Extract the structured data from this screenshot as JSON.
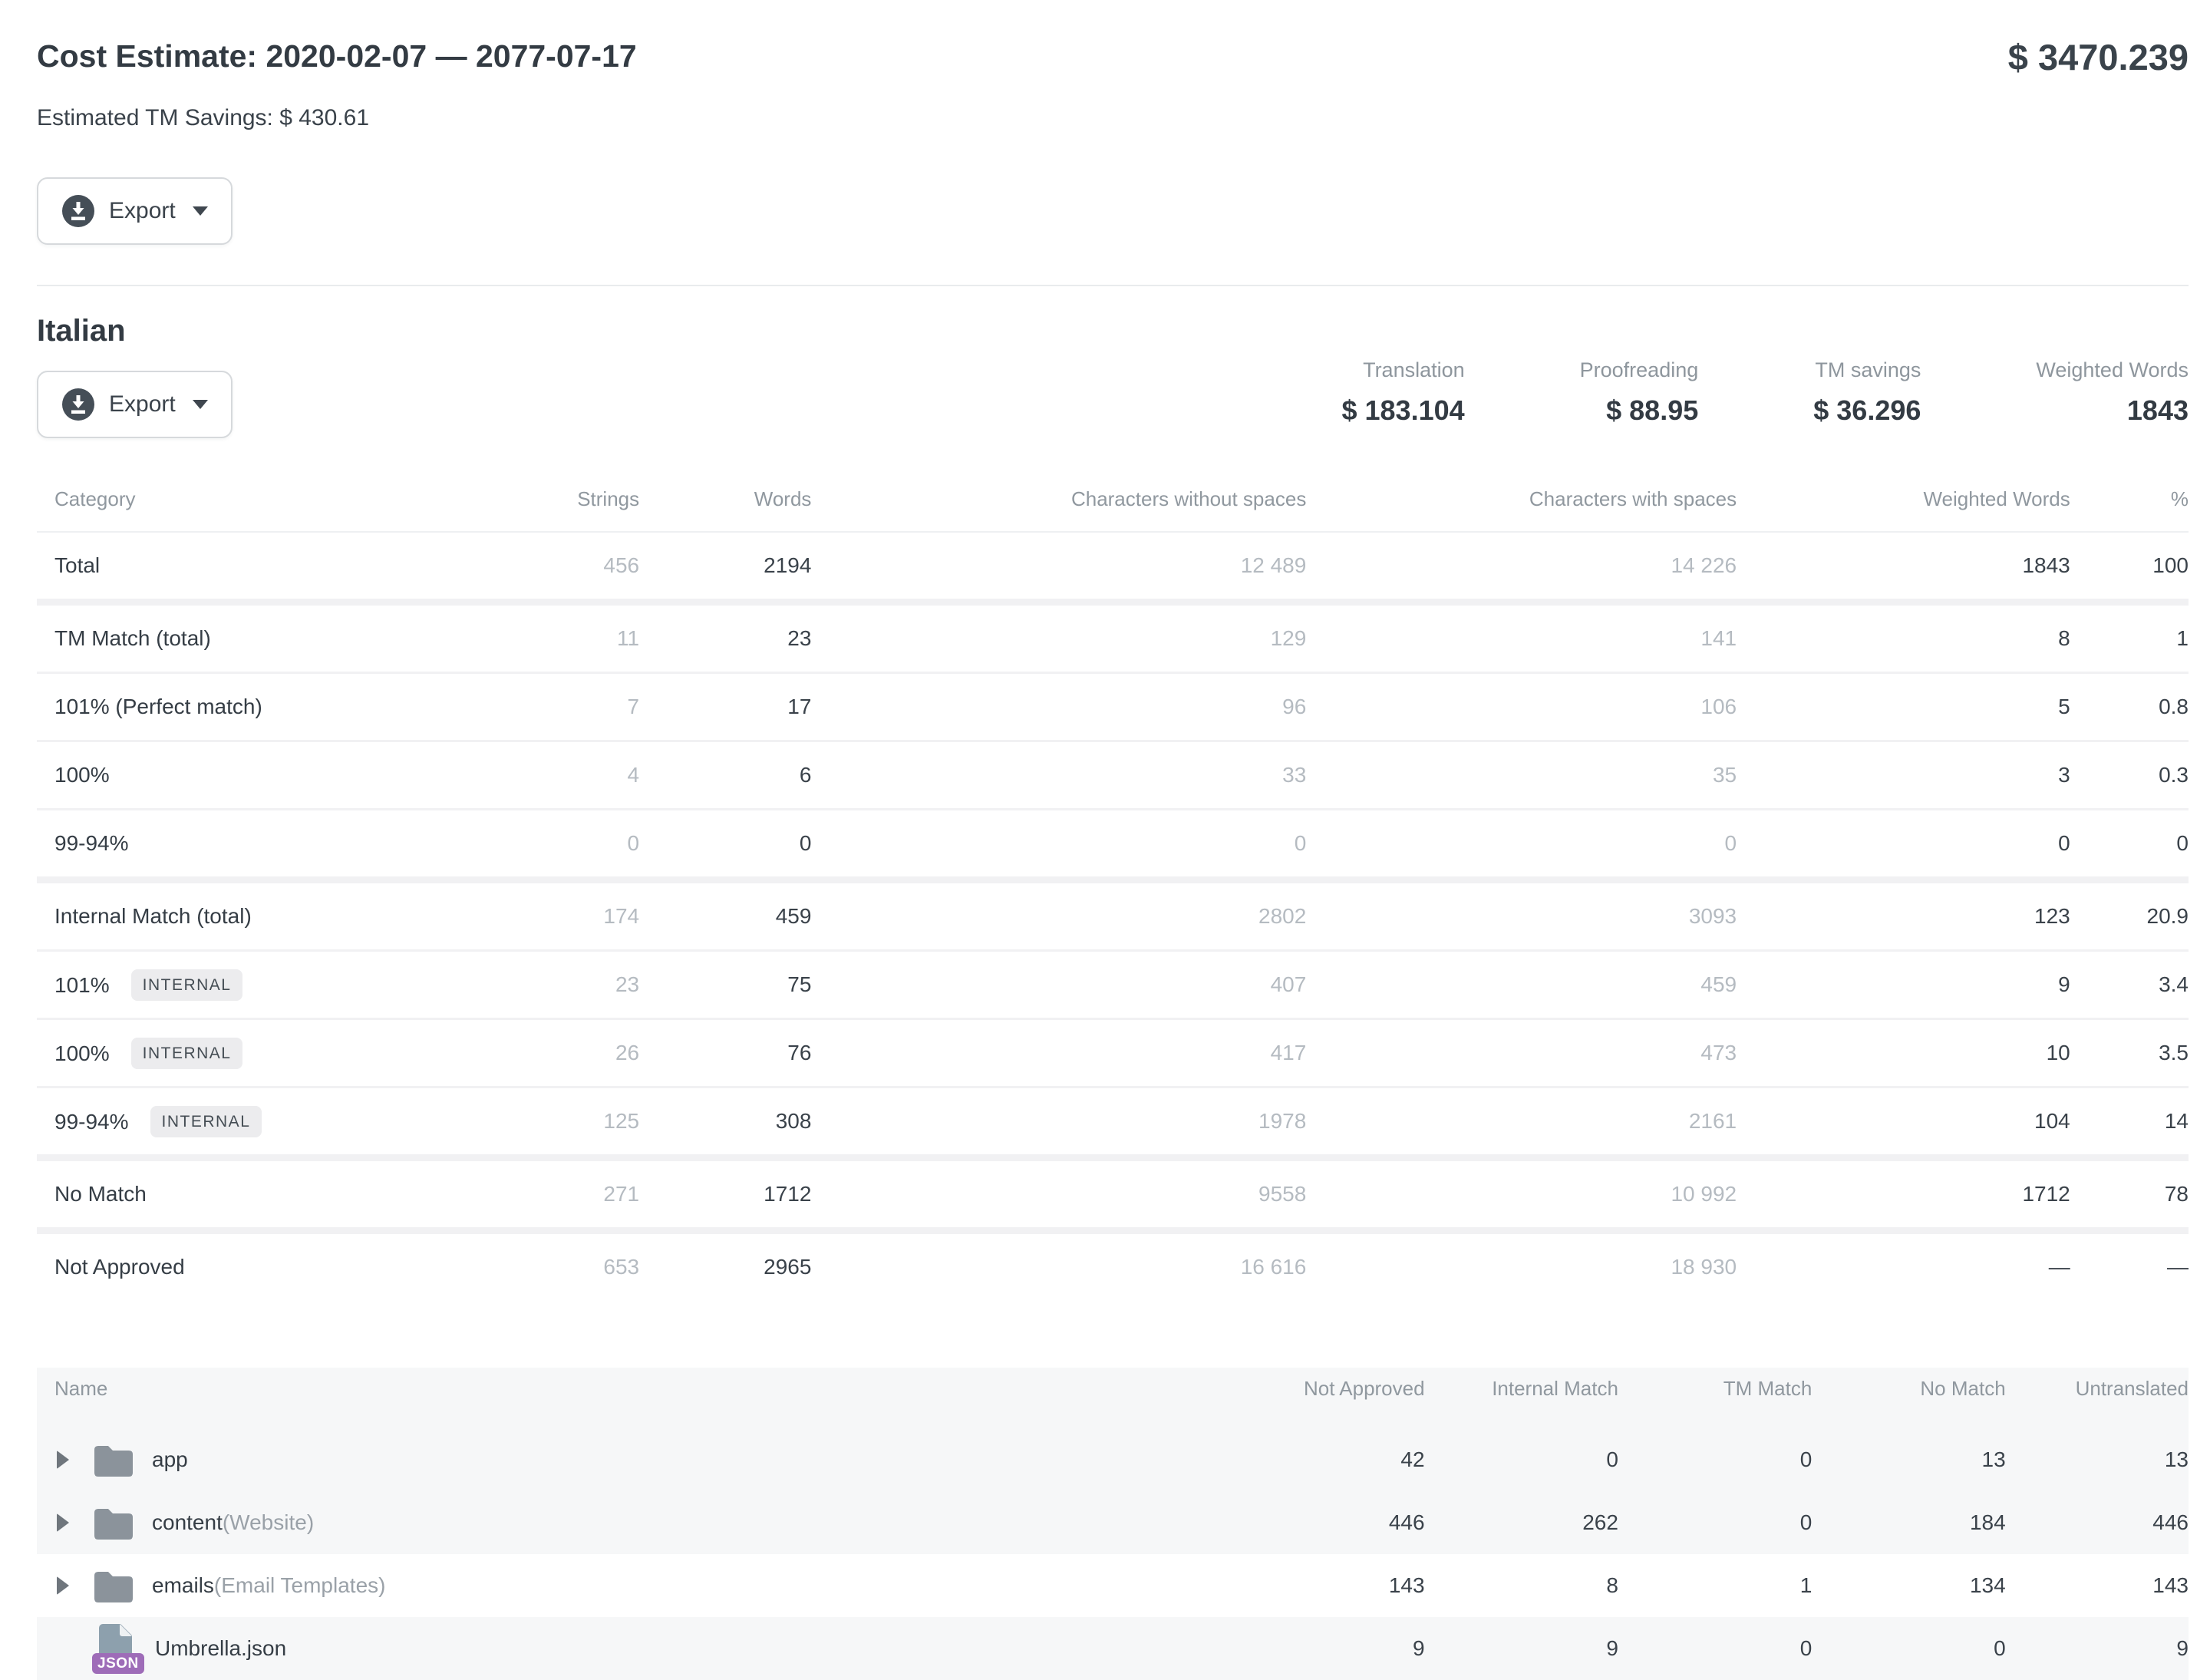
{
  "page": {
    "title": "Cost Estimate: 2020-02-07 — 2077-07-17",
    "total_price": "$ 3470.239",
    "tm_savings_line": "Estimated TM Savings: $ 430.61",
    "export_label": "Export"
  },
  "language_section": {
    "title": "Italian",
    "export_label": "Export",
    "stats": [
      {
        "label": "Translation",
        "value": "$ 183.104"
      },
      {
        "label": "Proofreading",
        "value": "$ 88.95"
      },
      {
        "label": "TM savings",
        "value": "$ 36.296"
      },
      {
        "label": "Weighted Words",
        "value": "1843"
      }
    ]
  },
  "category_table": {
    "headers": [
      "Category",
      "Strings",
      "Words",
      "Characters without spaces",
      "Characters with spaces",
      "Weighted Words",
      "%"
    ],
    "rows": [
      {
        "category": "Total",
        "badge": "",
        "group": false,
        "first": true,
        "strings": "456",
        "words": "2194",
        "chars_without": "12 489",
        "chars_with": "14 226",
        "weighted": "1843",
        "percent": "100"
      },
      {
        "category": "TM Match (total)",
        "badge": "",
        "group": true,
        "first": false,
        "strings": "11",
        "words": "23",
        "chars_without": "129",
        "chars_with": "141",
        "weighted": "8",
        "percent": "1"
      },
      {
        "category": "101% (Perfect match)",
        "badge": "",
        "group": false,
        "first": false,
        "strings": "7",
        "words": "17",
        "chars_without": "96",
        "chars_with": "106",
        "weighted": "5",
        "percent": "0.8"
      },
      {
        "category": "100%",
        "badge": "",
        "group": false,
        "first": false,
        "strings": "4",
        "words": "6",
        "chars_without": "33",
        "chars_with": "35",
        "weighted": "3",
        "percent": "0.3"
      },
      {
        "category": "99-94%",
        "badge": "",
        "group": false,
        "first": false,
        "strings": "0",
        "words": "0",
        "chars_without": "0",
        "chars_with": "0",
        "weighted": "0",
        "percent": "0"
      },
      {
        "category": "Internal Match (total)",
        "badge": "",
        "group": true,
        "first": false,
        "strings": "174",
        "words": "459",
        "chars_without": "2802",
        "chars_with": "3093",
        "weighted": "123",
        "percent": "20.9"
      },
      {
        "category": "101%",
        "badge": "INTERNAL",
        "group": false,
        "first": false,
        "strings": "23",
        "words": "75",
        "chars_without": "407",
        "chars_with": "459",
        "weighted": "9",
        "percent": "3.4"
      },
      {
        "category": "100%",
        "badge": "INTERNAL",
        "group": false,
        "first": false,
        "strings": "26",
        "words": "76",
        "chars_without": "417",
        "chars_with": "473",
        "weighted": "10",
        "percent": "3.5"
      },
      {
        "category": "99-94%",
        "badge": "INTERNAL",
        "group": false,
        "first": false,
        "strings": "125",
        "words": "308",
        "chars_without": "1978",
        "chars_with": "2161",
        "weighted": "104",
        "percent": "14"
      },
      {
        "category": "No Match",
        "badge": "",
        "group": true,
        "first": false,
        "strings": "271",
        "words": "1712",
        "chars_without": "9558",
        "chars_with": "10 992",
        "weighted": "1712",
        "percent": "78"
      },
      {
        "category": "Not Approved",
        "badge": "",
        "group": true,
        "first": false,
        "strings": "653",
        "words": "2965",
        "chars_without": "16 616",
        "chars_with": "18 930",
        "weighted": "—",
        "percent": "—"
      }
    ]
  },
  "files_table": {
    "headers": [
      "Name",
      "Not Approved",
      "Internal Match",
      "TM Match",
      "No Match",
      "Untranslated"
    ],
    "rows": [
      {
        "name": "app",
        "suffix": "",
        "type": "folder",
        "not_approved": "42",
        "internal_match": "0",
        "tm_match": "0",
        "no_match": "13",
        "untranslated": "13"
      },
      {
        "name": "content",
        "suffix": "(Website)",
        "type": "folder",
        "not_approved": "446",
        "internal_match": "262",
        "tm_match": "0",
        "no_match": "184",
        "untranslated": "446"
      },
      {
        "name": "emails",
        "suffix": "(Email Templates)",
        "type": "folder",
        "not_approved": "143",
        "internal_match": "8",
        "tm_match": "1",
        "no_match": "134",
        "untranslated": "143"
      },
      {
        "name": "Umbrella.json",
        "suffix": "",
        "type": "json",
        "not_approved": "9",
        "internal_match": "9",
        "tm_match": "0",
        "no_match": "0",
        "untranslated": "9"
      }
    ]
  },
  "icons": {
    "json_badge": "JSON"
  }
}
